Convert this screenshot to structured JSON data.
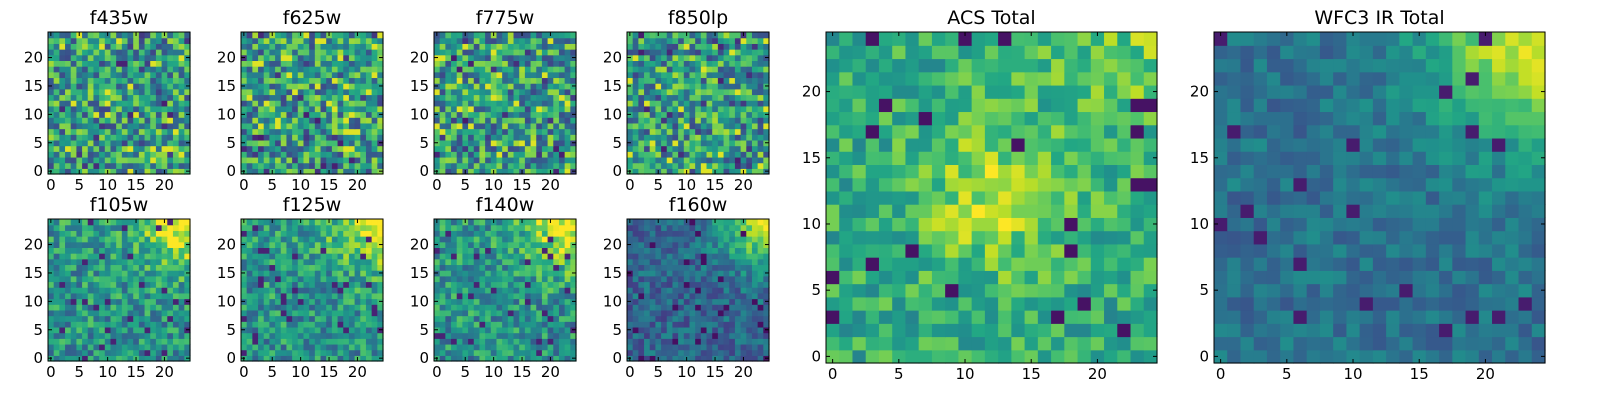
{
  "chart_data": [
    {
      "type": "heatmap",
      "title": "f435w",
      "xticks": [
        "0",
        "5",
        "10",
        "15",
        "20"
      ],
      "yticks": [
        "0",
        "5",
        "10",
        "15",
        "20"
      ],
      "xlim": [
        -0.5,
        24.5
      ],
      "ylim": [
        -0.5,
        24.5
      ],
      "grid": false,
      "colormap": "viridis",
      "texture": "noise",
      "values": []
    },
    {
      "type": "heatmap",
      "title": "f625w",
      "xticks": [
        "0",
        "5",
        "10",
        "15",
        "20"
      ],
      "yticks": [
        "0",
        "5",
        "10",
        "15",
        "20"
      ],
      "xlim": [
        -0.5,
        24.5
      ],
      "ylim": [
        -0.5,
        24.5
      ],
      "grid": false,
      "colormap": "viridis",
      "texture": "noise",
      "values": []
    },
    {
      "type": "heatmap",
      "title": "f775w",
      "xticks": [
        "0",
        "5",
        "10",
        "15",
        "20"
      ],
      "yticks": [
        "0",
        "5",
        "10",
        "15",
        "20"
      ],
      "xlim": [
        -0.5,
        24.5
      ],
      "ylim": [
        -0.5,
        24.5
      ],
      "grid": false,
      "colormap": "viridis",
      "texture": "noise",
      "values": []
    },
    {
      "type": "heatmap",
      "title": "f850lp",
      "xticks": [
        "0",
        "5",
        "10",
        "15",
        "20"
      ],
      "yticks": [
        "0",
        "5",
        "10",
        "15",
        "20"
      ],
      "xlim": [
        -0.5,
        24.5
      ],
      "ylim": [
        -0.5,
        24.5
      ],
      "grid": false,
      "colormap": "viridis",
      "texture": "noise",
      "values": []
    },
    {
      "type": "heatmap",
      "title": "f105w",
      "xticks": [
        "0",
        "5",
        "10",
        "15",
        "20"
      ],
      "yticks": [
        "0",
        "5",
        "10",
        "15",
        "20"
      ],
      "xlim": [
        -0.5,
        24.5
      ],
      "ylim": [
        -0.5,
        24.5
      ],
      "grid": false,
      "colormap": "viridis",
      "texture": "ir-gradient",
      "values": []
    },
    {
      "type": "heatmap",
      "title": "f125w",
      "xticks": [
        "0",
        "5",
        "10",
        "15",
        "20"
      ],
      "yticks": [
        "0",
        "5",
        "10",
        "15",
        "20"
      ],
      "xlim": [
        -0.5,
        24.5
      ],
      "ylim": [
        -0.5,
        24.5
      ],
      "grid": false,
      "colormap": "viridis",
      "texture": "ir-gradient",
      "values": []
    },
    {
      "type": "heatmap",
      "title": "f140w",
      "xticks": [
        "0",
        "5",
        "10",
        "15",
        "20"
      ],
      "yticks": [
        "0",
        "5",
        "10",
        "15",
        "20"
      ],
      "xlim": [
        -0.5,
        24.5
      ],
      "ylim": [
        -0.5,
        24.5
      ],
      "grid": false,
      "colormap": "viridis",
      "texture": "ir-gradient",
      "values": []
    },
    {
      "type": "heatmap",
      "title": "f160w",
      "xticks": [
        "0",
        "5",
        "10",
        "15",
        "20"
      ],
      "yticks": [
        "0",
        "5",
        "10",
        "15",
        "20"
      ],
      "xlim": [
        -0.5,
        24.5
      ],
      "ylim": [
        -0.5,
        24.5
      ],
      "grid": false,
      "colormap": "viridis",
      "texture": "ir-dark",
      "values": []
    },
    {
      "type": "heatmap",
      "title": "ACS Total",
      "xticks": [
        "0",
        "5",
        "10",
        "15",
        "20"
      ],
      "yticks": [
        "0",
        "5",
        "10",
        "15",
        "20"
      ],
      "xlim": [
        -0.5,
        24.5
      ],
      "ylim": [
        -0.5,
        24.5
      ],
      "grid": false,
      "colormap": "viridis",
      "texture": "acs-total",
      "values": []
    },
    {
      "type": "heatmap",
      "title": "WFC3 IR Total",
      "xticks": [
        "0",
        "5",
        "10",
        "15",
        "20"
      ],
      "yticks": [
        "0",
        "5",
        "10",
        "15",
        "20"
      ],
      "xlim": [
        -0.5,
        24.5
      ],
      "ylim": [
        -0.5,
        24.5
      ],
      "grid": false,
      "colormap": "viridis",
      "texture": "ir-total",
      "values": []
    }
  ]
}
